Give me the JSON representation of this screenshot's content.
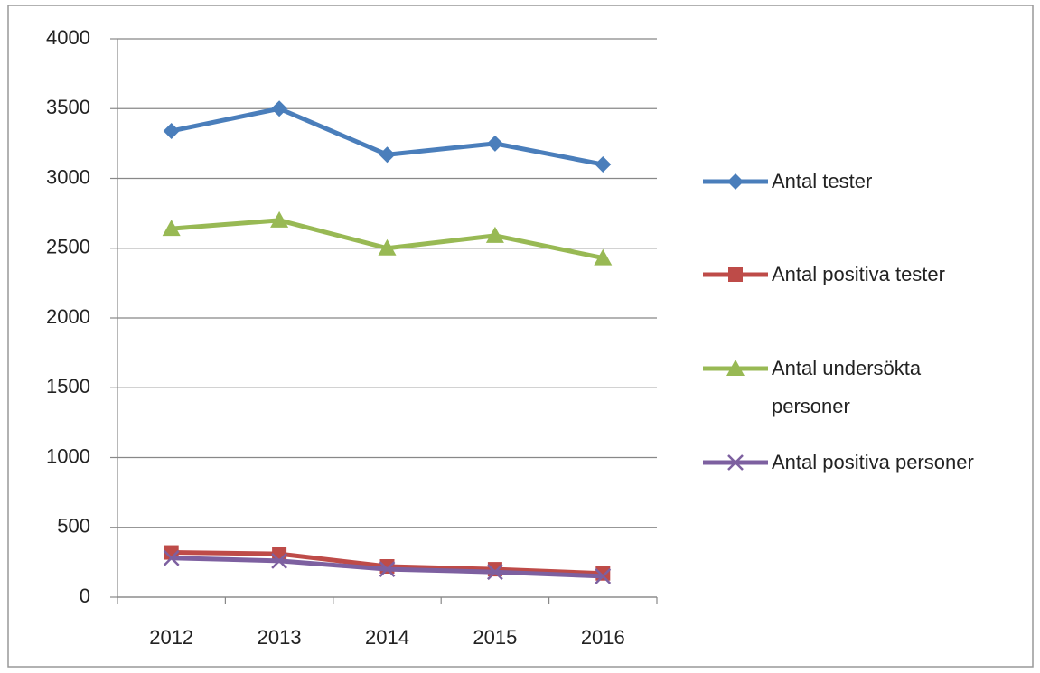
{
  "chart_data": {
    "type": "line",
    "categories": [
      "2012",
      "2013",
      "2014",
      "2015",
      "2016"
    ],
    "series": [
      {
        "name": "Antal tester",
        "color": "#4a7ebb",
        "marker": "diamond",
        "values": [
          3340,
          3500,
          3170,
          3250,
          3100
        ]
      },
      {
        "name": "Antal positiva tester",
        "color": "#be4b48",
        "marker": "square",
        "values": [
          320,
          310,
          220,
          200,
          170
        ]
      },
      {
        "name": "Antal undersökta personer",
        "color": "#98b954",
        "marker": "triangle",
        "values": [
          2640,
          2700,
          2500,
          2590,
          2430
        ]
      },
      {
        "name": "Antal positiva personer",
        "color": "#7d60a0",
        "marker": "x",
        "values": [
          280,
          260,
          200,
          180,
          150
        ]
      }
    ],
    "ylim": [
      0,
      4000
    ],
    "yticks": [
      0,
      500,
      1000,
      1500,
      2000,
      2500,
      3000,
      3500,
      4000
    ],
    "grid": true,
    "legend": "right"
  }
}
